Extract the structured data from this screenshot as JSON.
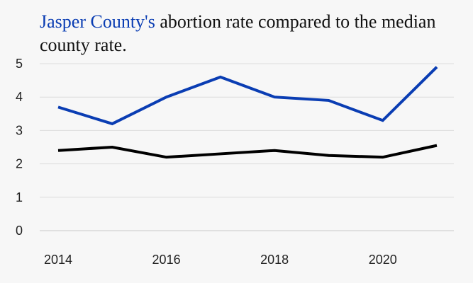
{
  "chart_data": {
    "type": "line",
    "title": {
      "highlight": "Jasper County's",
      "rest": " abortion rate compared to the median county rate."
    },
    "xlabel": "",
    "ylabel": "",
    "x": [
      2014,
      2015,
      2016,
      2017,
      2018,
      2019,
      2020,
      2021
    ],
    "x_ticks": [
      "2014",
      "2016",
      "2018",
      "2020"
    ],
    "y_ticks": [
      "0",
      "1",
      "2",
      "3",
      "4",
      "5"
    ],
    "xlim": [
      2014,
      2021
    ],
    "ylim": [
      0,
      5
    ],
    "grid": true,
    "series": [
      {
        "color": "#0a3db3",
        "values": [
          3.7,
          3.2,
          4.0,
          4.6,
          4.0,
          3.9,
          3.3,
          4.9
        ]
      },
      {
        "color": "#000000",
        "values": [
          2.4,
          2.5,
          2.2,
          2.3,
          2.4,
          2.25,
          2.2,
          2.55
        ]
      }
    ]
  }
}
